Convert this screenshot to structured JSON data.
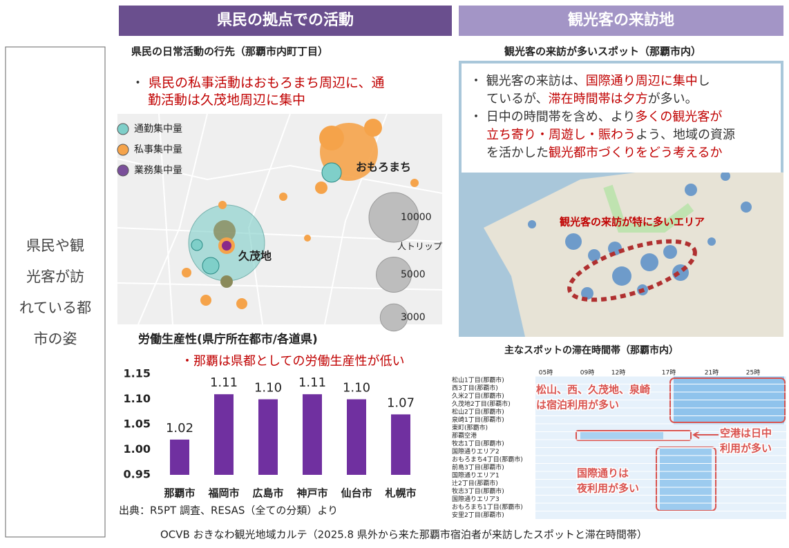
{
  "side_label": [
    "県民や観",
    "光客が訪",
    "れている都",
    "市の姿"
  ],
  "left": {
    "header": "県民の拠点での活動",
    "map_title": "県民の日常活動の行先（那覇市内町丁目）",
    "bullets": [
      [
        [
          {
            "text": "・ ",
            "color": "#333333"
          },
          {
            "text": "県民の私事活動はおもろまち周辺に、通",
            "color": "#c00000"
          }
        ],
        [
          {
            "text": "勤活動は久茂地周辺に集中",
            "color": "#c00000"
          }
        ]
      ]
    ],
    "legend": [
      {
        "name": "通勤集中量",
        "color": "#7fcfc9"
      },
      {
        "name": "私事集中量",
        "color": "#f5a34a"
      },
      {
        "name": "業務集中量",
        "color": "#7a4f9a"
      }
    ],
    "places": [
      "おもろまち",
      "久茂地"
    ],
    "size_legend": [
      10000,
      5000,
      3000
    ],
    "size_unit": "人トリップ"
  },
  "chart_data": {
    "type": "bar",
    "title": "労働生産性(県庁所在都市/各道県)",
    "annotation": "・那覇は県都としての労働生産性が低い",
    "categories": [
      "那覇市",
      "福岡市",
      "広島市",
      "神戸市",
      "仙台市",
      "札幌市"
    ],
    "values": [
      1.02,
      1.11,
      1.1,
      1.11,
      1.1,
      1.07
    ],
    "value_labels": [
      "1.02",
      "1.11",
      "1.10",
      "1.11",
      "1.10",
      "1.07"
    ],
    "color": "#7030a0",
    "ylim": [
      0.95,
      1.15
    ],
    "yticks": [
      0.95,
      {
        "value": 1,
        "label": "1.00"
      },
      1.05,
      {
        "value": 1.1,
        "label": "1.10"
      },
      1.15
    ],
    "grid": false
  },
  "sources": [
    "出典：R5PT 調査、RESAS（全ての分類）より",
    "OCVB おきなわ観光地域カルテ（2025.8 県外から来た那覇市宿泊者が来訪したスポットと滞在時間帯）"
  ],
  "right": {
    "header": "観光客の来訪地",
    "map_title": "観光客の来訪が多いスポット（那覇市内）",
    "bullets": [
      [
        [
          {
            "text": "・ 観光客の来訪は、",
            "color": "#333333"
          },
          {
            "text": "国際通り周辺に集中",
            "color": "#c00000"
          },
          {
            "text": "し",
            "color": "#333333"
          }
        ],
        [
          {
            "text": "ているが、",
            "color": "#333333"
          },
          {
            "text": "滞在時間帯は夕方",
            "color": "#c00000"
          },
          {
            "text": "が多い。",
            "color": "#333333"
          }
        ]
      ],
      [
        [
          {
            "text": "・ 日中の時間帯を含め、より",
            "color": "#333333"
          },
          {
            "text": "多くの観光客が",
            "color": "#c00000"
          }
        ],
        [
          {
            "text": "立ち寄り・周遊し・賑わう",
            "color": "#c00000"
          },
          {
            "text": "よう、地域の資源",
            "color": "#333333"
          }
        ],
        [
          {
            "text": "を活かした",
            "color": "#333333"
          },
          {
            "text": "観光都市づくりをどう考えるか",
            "color": "#c00000"
          }
        ]
      ]
    ],
    "area_label": "観光客の来訪が特に多いエリア",
    "heatmap_title": "主なスポットの滞在時間帯（那覇市内）",
    "hours": [
      "05時",
      "09時",
      "12時",
      "17時",
      "21時",
      "25時"
    ],
    "rows": [
      "松山1丁目(那覇市)",
      "西3丁目(那覇市)",
      "久米2丁目(那覇市)",
      "久茂地2丁目(那覇市)",
      "松山2丁目(那覇市)",
      "泉崎1丁目(那覇市)",
      "東町(那覇市)",
      "那覇空港",
      "牧志1丁目(那覇市)",
      "国際通りエリア2",
      "おもろまち4丁目(那覇市)",
      "前島3丁目(那覇市)",
      "国際通りエリア1",
      "辻2丁目(那覇市)",
      "牧志3丁目(那覇市)",
      "国際通りエリア3",
      "おもろまち1丁目(那覇市)",
      "安里2丁目(那覇市)"
    ],
    "notes": [
      [
        "松山、西、久茂地、泉崎",
        "は宿泊利用が多い"
      ],
      [
        "空港は日中",
        "利用が多い"
      ],
      [
        "国際通りは",
        "夜利用が多い"
      ]
    ]
  }
}
